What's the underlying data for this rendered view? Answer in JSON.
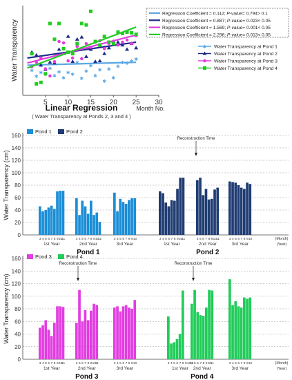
{
  "chart_data": [
    {
      "type": "scatter",
      "panel": "top",
      "xlabel": "Linear Regression",
      "xlabel_note": "( Water Transparency at Ponds 2, 3 and 4 )",
      "xunit": "Month No.",
      "ylabel": "Water Transparency",
      "xlim": [
        0,
        30
      ],
      "xticks": [
        5,
        10,
        15,
        20,
        25,
        30
      ],
      "regression_legend": [
        {
          "prefix": "Regression Coefficient = ",
          "coef": "0.112",
          "sep": ";  ",
          "pv": "P-value",
          "rest": "= 0.794> 0.1",
          "color": "#5aa7e6"
        },
        {
          "prefix": "Regression Coefficient = ",
          "coef": "0.887",
          "sep": ";  ",
          "pv": "P-value",
          "rest": "= 0.023< 0.05",
          "color": "#1e2a8a"
        },
        {
          "prefix": "Regression Coefficient = ",
          "coef": "1.569",
          "sep": ";  ",
          "pv": "P-value",
          "rest": "= 0.001< 0.05",
          "color": "#e23ee0"
        },
        {
          "prefix": "Regression Coefficient = ",
          "coef": "2.296",
          "sep": ";  ",
          "pv": "P-value",
          "rest": "= 0.013< 0.05",
          "color": "#21cc21"
        }
      ],
      "series": [
        {
          "name": "Water Transparency at Pond 1",
          "color": "#5aa7e6",
          "marker": "star",
          "points": [
            [
              2,
              45
            ],
            [
              3,
              37
            ],
            [
              4,
              42
            ],
            [
              5,
              40
            ],
            [
              6,
              48
            ],
            [
              7,
              38
            ],
            [
              8,
              43
            ],
            [
              9,
              35
            ],
            [
              10,
              42
            ],
            [
              11,
              40
            ],
            [
              12,
              56
            ],
            [
              13,
              34
            ],
            [
              14,
              44
            ],
            [
              15,
              52
            ],
            [
              16,
              38
            ],
            [
              17,
              46
            ],
            [
              18,
              30
            ],
            [
              19,
              47
            ],
            [
              20,
              35
            ],
            [
              21,
              51
            ],
            [
              22,
              56
            ],
            [
              23,
              55
            ],
            [
              24,
              58
            ],
            [
              25,
              61
            ]
          ],
          "fit": [
            [
              1,
              52
            ],
            [
              25,
              56
            ]
          ]
        },
        {
          "name": "Water Transparency at Pond 2",
          "color": "#1e2a8a",
          "marker": "triangle",
          "points": [
            [
              2,
              70
            ],
            [
              3,
              66
            ],
            [
              4,
              52
            ],
            [
              5,
              46
            ],
            [
              6,
              56
            ],
            [
              7,
              55
            ],
            [
              8,
              74
            ],
            [
              9,
              68
            ],
            [
              10,
              92
            ],
            [
              11,
              57
            ],
            [
              12,
              88
            ],
            [
              13,
              91
            ],
            [
              14,
              64
            ],
            [
              15,
              74
            ],
            [
              16,
              57
            ],
            [
              17,
              58
            ],
            [
              18,
              68
            ],
            [
              19,
              76
            ],
            [
              20,
              85
            ],
            [
              21,
              84
            ],
            [
              22,
              80
            ],
            [
              23,
              74
            ],
            [
              24,
              82
            ],
            [
              25,
              76
            ]
          ],
          "fit": [
            [
              1,
              62
            ],
            [
              25,
              84
            ]
          ]
        },
        {
          "name": "Water Transparency at Pond 3",
          "color": "#e23ee0",
          "marker": "circle",
          "points": [
            [
              2,
              50
            ],
            [
              3,
              56
            ],
            [
              4,
              62
            ],
            [
              5,
              47
            ],
            [
              6,
              37
            ],
            [
              7,
              57
            ],
            [
              8,
              85
            ],
            [
              9,
              83
            ],
            [
              10,
              58
            ],
            [
              11,
              62
            ],
            [
              12,
              78
            ],
            [
              13,
              61
            ],
            [
              14,
              82
            ],
            [
              15,
              77
            ],
            [
              16,
              84
            ],
            [
              17,
              86
            ],
            [
              18,
              75
            ],
            [
              19,
              82
            ],
            [
              20,
              85
            ],
            [
              21,
              80
            ],
            [
              22,
              84
            ],
            [
              23,
              87
            ],
            [
              24,
              82
            ],
            [
              25,
              93
            ]
          ],
          "fit": [
            [
              1,
              55
            ],
            [
              25,
              94
            ]
          ]
        },
        {
          "name": "Water Transparency at Pond 4",
          "color": "#21cc21",
          "marker": "square",
          "points": [
            [
              2,
              68
            ],
            [
              3,
              26
            ],
            [
              4,
              28
            ],
            [
              5,
              40
            ],
            [
              6,
              110
            ],
            [
              7,
              88
            ],
            [
              8,
              110
            ],
            [
              9,
              75
            ],
            [
              10,
              70
            ],
            [
              11,
              68
            ],
            [
              12,
              82
            ],
            [
              13,
              110
            ],
            [
              14,
              108
            ],
            [
              15,
              127
            ],
            [
              16,
              85
            ],
            [
              17,
              80
            ],
            [
              18,
              92
            ],
            [
              19,
              84
            ],
            [
              20,
              82
            ],
            [
              21,
              98
            ],
            [
              22,
              96
            ],
            [
              23,
              98
            ],
            [
              24,
              97
            ],
            [
              25,
              95
            ]
          ],
          "fit": [
            [
              1,
              48
            ],
            [
              25,
              105
            ]
          ]
        }
      ]
    },
    {
      "type": "bar",
      "panel": "middle",
      "ylabel": "Water Transparency (cm)",
      "ylim": [
        0,
        160
      ],
      "yticks": [
        0,
        20,
        40,
        60,
        80,
        100,
        120,
        140,
        160
      ],
      "grid": true,
      "legend": [
        "Pond 1",
        "Pond 2"
      ],
      "annotation": "Reconstruction Time",
      "months_label": "(Month)",
      "year_label": "(Year)",
      "groups": [
        {
          "name": "Pond 1",
          "color": "#1b8ed6",
          "years": [
            {
              "label": "1st Year",
              "months": [
                "3",
                "4",
                "5",
                "6",
                "7",
                "8",
                "9",
                "10",
                "11"
              ],
              "values": [
                46,
                38,
                40,
                44,
                47,
                42,
                70,
                71,
                71
              ]
            },
            {
              "label": "2nd Year",
              "months": [
                "3",
                "4",
                "5",
                "6",
                "7",
                "8",
                "9",
                "10",
                "11"
              ],
              "values": [
                59,
                32,
                55,
                46,
                34,
                55,
                32,
                36,
                21
              ]
            },
            {
              "label": "3rd Year",
              "months": [
                "3",
                "4",
                "5",
                "6",
                "7",
                "8",
                "9",
                "10"
              ],
              "values": [
                68,
                38,
                58,
                53,
                50,
                56,
                59,
                59
              ]
            }
          ]
        },
        {
          "name": "Pond 2",
          "color": "#203d73",
          "years": [
            {
              "label": "1st Year",
              "months": [
                "3",
                "4",
                "5",
                "6",
                "7",
                "8",
                "9",
                "10",
                "11"
              ],
              "values": [
                70,
                67,
                52,
                46,
                56,
                55,
                74,
                92,
                92
              ]
            },
            {
              "label": "2nd Year",
              "months": [
                "3",
                "5",
                "6",
                "7",
                "8",
                "9",
                "10",
                "11"
              ],
              "values": [
                88,
                92,
                64,
                74,
                57,
                58,
                73,
                76
              ]
            },
            {
              "label": "3rd Year",
              "months": [
                "3",
                "4",
                "5",
                "6",
                "7",
                "8",
                "9",
                "10"
              ],
              "values": [
                86,
                85,
                84,
                80,
                76,
                74,
                84,
                82
              ]
            }
          ]
        }
      ]
    },
    {
      "type": "bar",
      "panel": "bottom",
      "ylabel": "Water Transparency (cm)",
      "ylim": [
        0,
        160
      ],
      "yticks": [
        0,
        20,
        40,
        60,
        80,
        100,
        120,
        140,
        160
      ],
      "grid": true,
      "legend": [
        "Pond 3",
        "Pond 4"
      ],
      "annotation": "Reconstruction Time",
      "months_label": "(Month)",
      "year_label": "(Year)",
      "groups": [
        {
          "name": "Pond 3",
          "color": "#e23ee0",
          "years": [
            {
              "label": "1st Year",
              "months": [
                "3",
                "4",
                "5",
                "6",
                "7",
                "8",
                "9",
                "10",
                "11"
              ],
              "values": [
                50,
                54,
                62,
                47,
                37,
                58,
                84,
                84,
                83
              ]
            },
            {
              "label": "2nd Year",
              "months": [
                "3",
                "5",
                "6",
                "7",
                "8",
                "9",
                "10",
                "11"
              ],
              "values": [
                58,
                110,
                60,
                78,
                62,
                77,
                88,
                86
              ]
            },
            {
              "label": "3rd Year",
              "months": [
                "3",
                "4",
                "5",
                "6",
                "7",
                "8",
                "9",
                "10"
              ],
              "values": [
                82,
                84,
                76,
                84,
                86,
                82,
                80,
                94
              ]
            }
          ]
        },
        {
          "name": "Pond 4",
          "color": "#21cc5a",
          "years": [
            {
              "label": "1st Year",
              "months": [
                "3",
                "4",
                "5",
                "6",
                "7",
                "8",
                "9",
                "10",
                "11"
              ],
              "values": [
                68,
                25,
                27,
                32,
                40,
                109,
                0,
                0,
                0
              ]
            },
            {
              "label": "2nd Year",
              "months": [
                "3",
                "5",
                "6",
                "7",
                "8",
                "9",
                "10",
                "11"
              ],
              "values": [
                88,
                110,
                75,
                70,
                69,
                82,
                110,
                109
              ]
            },
            {
              "label": "3rd Year",
              "months": [
                "3",
                "4",
                "5",
                "6",
                "7",
                "8",
                "9",
                "10"
              ],
              "values": [
                127,
                86,
                92,
                84,
                82,
                98,
                96,
                98
              ]
            }
          ]
        }
      ]
    }
  ]
}
